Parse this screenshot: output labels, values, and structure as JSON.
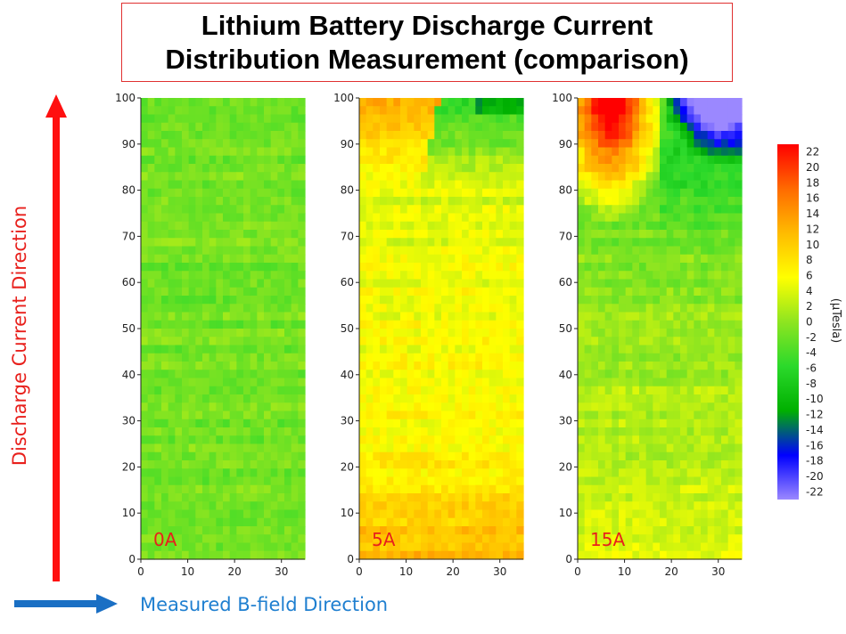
{
  "title": {
    "line1": "Lithium Battery Discharge Current",
    "line2": "Distribution Measurement (comparison)"
  },
  "side_labels": {
    "vertical": "Discharge Current Direction",
    "horizontal": "Measured B-field Direction"
  },
  "colors": {
    "title_border": "#e03030",
    "vertical_arrow": "#ff1010",
    "horizontal_arrow": "#1a6fc4",
    "panel_label": "#e8201c"
  },
  "chart_data": {
    "type": "heatmap",
    "x_ticks": [
      0,
      10,
      20,
      30
    ],
    "y_ticks": [
      0,
      10,
      20,
      30,
      40,
      50,
      60,
      70,
      80,
      90,
      100
    ],
    "xlim": [
      0,
      35
    ],
    "ylim": [
      0,
      100
    ],
    "panels": [
      {
        "label": "0A",
        "current_A": 0
      },
      {
        "label": "5A",
        "current_A": 5
      },
      {
        "label": "15A",
        "current_A": 15
      }
    ],
    "colorbar": {
      "unit": "(μTesla)",
      "range": [
        -23,
        23
      ],
      "ticks": [
        22,
        20,
        18,
        16,
        14,
        12,
        10,
        8,
        6,
        4,
        2,
        0,
        -2,
        -4,
        -6,
        -8,
        -10,
        -12,
        -14,
        -16,
        -18,
        -20,
        -22
      ],
      "colormap": [
        "#9b88ff",
        "#0000ff",
        "#00b000",
        "#2bd92b",
        "#8ee520",
        "#ffff00",
        "#ffbb00",
        "#ff6a00",
        "#ff0000"
      ]
    }
  }
}
